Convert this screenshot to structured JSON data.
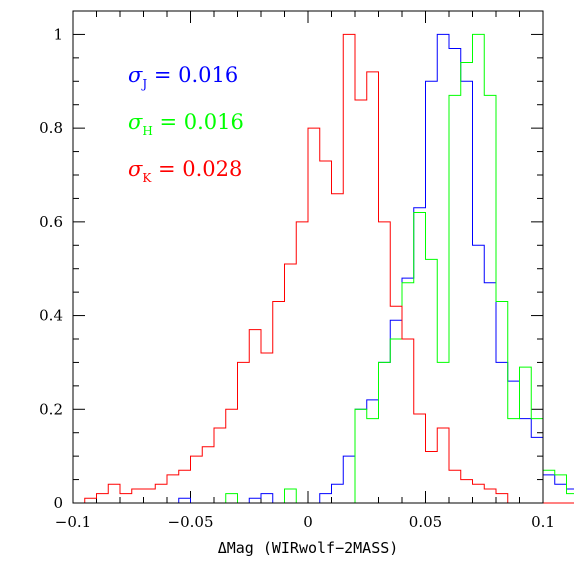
{
  "chart_data": {
    "type": "histogram",
    "xlabel": "ΔMag (WIRwolf−2MASS)",
    "ylabel": "",
    "xlim": [
      -0.1,
      0.1
    ],
    "ylim": [
      0,
      1.05
    ],
    "grid": false,
    "x_ticks": [
      -0.1,
      -0.05,
      0,
      0.05,
      0.1
    ],
    "x_tick_labels": [
      "−0.1",
      "−0.05",
      "0",
      "0.05",
      "0.1"
    ],
    "y_ticks": [
      0,
      0.2,
      0.4,
      0.6,
      0.8,
      1
    ],
    "y_tick_labels": [
      "0",
      "0.2",
      "0.4",
      "0.6",
      "0.8",
      "1"
    ],
    "bin_width": 0.005,
    "bin_start": -0.1,
    "series": [
      {
        "name": "J",
        "color": "#0000ff",
        "values": [
          0,
          0,
          0,
          0,
          0,
          0,
          0,
          0,
          0,
          0.01,
          0,
          0,
          0,
          0,
          0,
          0.01,
          0.02,
          0,
          0,
          0,
          0,
          0.02,
          0.04,
          0.1,
          0.2,
          0.22,
          0.3,
          0.39,
          0.48,
          0.63,
          0.9,
          1.0,
          0.97,
          0.9,
          0.55,
          0.47,
          0.3,
          0.26,
          0.18,
          0.14,
          0.06,
          0.04,
          0.03,
          0.02,
          0.02,
          0.02,
          0.01,
          0.01,
          0,
          0,
          0,
          0,
          0,
          0,
          0,
          0,
          0,
          0,
          0,
          0
        ]
      },
      {
        "name": "H",
        "color": "#00ff00",
        "values": [
          0,
          0,
          0,
          0,
          0,
          0,
          0,
          0,
          0,
          0,
          0,
          0,
          0,
          0.02,
          0,
          0,
          0,
          0,
          0.03,
          0,
          0,
          0,
          0,
          0,
          0.2,
          0.18,
          0.3,
          0.35,
          0.47,
          0.62,
          0.52,
          0.3,
          0.87,
          0.94,
          1.0,
          0.87,
          0.43,
          0.18,
          0.29,
          0.18,
          0.07,
          0.06,
          0.02,
          0.02,
          0.01,
          0.02,
          0.03,
          0.01,
          0,
          0,
          0,
          0,
          0,
          0,
          0,
          0,
          0,
          0,
          0,
          0
        ]
      },
      {
        "name": "K",
        "color": "#ff0000",
        "values": [
          0,
          0.01,
          0.02,
          0.04,
          0.02,
          0.03,
          0.03,
          0.04,
          0.06,
          0.07,
          0.1,
          0.12,
          0.16,
          0.2,
          0.3,
          0.37,
          0.32,
          0.43,
          0.51,
          0.6,
          0.8,
          0.73,
          0.66,
          1.0,
          0.86,
          0.92,
          0.6,
          0.42,
          0.35,
          0.19,
          0.11,
          0.16,
          0.07,
          0.05,
          0.04,
          0.03,
          0.02,
          0,
          0,
          0,
          0,
          0,
          0,
          0,
          0,
          0,
          0,
          0,
          0,
          0,
          0,
          0,
          0,
          0,
          0,
          0,
          0,
          0,
          0,
          0
        ]
      }
    ],
    "annotations": [
      {
        "symbol": "σ",
        "subscript": "J",
        "text": " =  0.016",
        "color": "#0000ff"
      },
      {
        "symbol": "σ",
        "subscript": "H",
        "text": " =  0.016",
        "color": "#00ff00"
      },
      {
        "symbol": "σ",
        "subscript": "K",
        "text": " =  0.028",
        "color": "#ff0000"
      }
    ]
  }
}
